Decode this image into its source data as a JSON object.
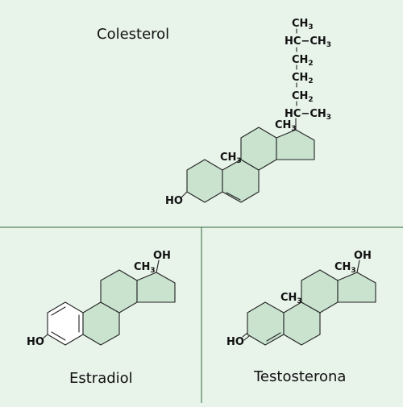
{
  "molecules": [
    {
      "name": "Colesterol"
    },
    {
      "name": "Estradiol"
    },
    {
      "name": "Testosterona"
    }
  ],
  "labels": {
    "ch3": "CH",
    "ch3_sub": "3",
    "ch2": "CH",
    "ch2_sub": "2",
    "hc": "HC",
    "dash": "−",
    "ho": "HO",
    "oh": "OH",
    "o": "O"
  },
  "colors": {
    "background": "#e8f3ea",
    "ring_fill": "#c9e3cf",
    "aromatic_fill": "#ffffff",
    "divider": "#2f6b3a"
  }
}
